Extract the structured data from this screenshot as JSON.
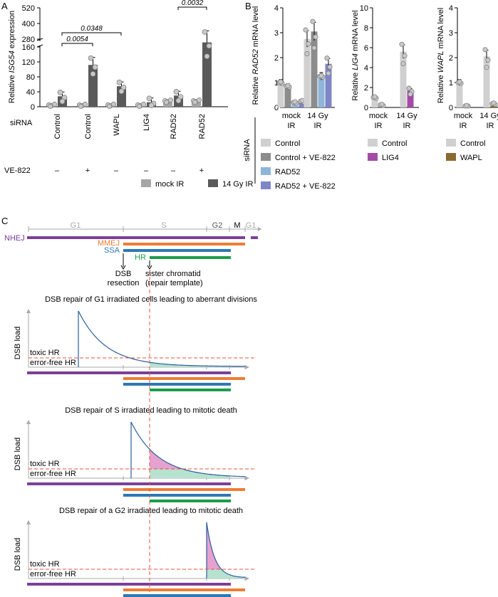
{
  "panel_labels": {
    "a": "A",
    "b": "B",
    "c": "C"
  },
  "colors": {
    "mock": "#a6a6a6",
    "gy14": "#5a5a5a",
    "control": "#d0d0d0",
    "control_ve": "#8c8c8c",
    "rad52": "#8fb5d9",
    "rad52_ve": "#7f86c6",
    "lig4": "#a24ba7",
    "wapl": "#8a6b2f",
    "nhej": "#7c3f98",
    "mmej": "#ee7d36",
    "ssa": "#2c78b5",
    "hr": "#1b9e4b",
    "curve": "#2c5f9e",
    "toxic": "#e6a1d0",
    "errorfree": "#b6e2cf",
    "dashed": "#e8503a"
  },
  "chart_data": [
    {
      "id": "A",
      "type": "bar",
      "ylabel_prefix": "Relative ",
      "ylabel_gene": "ISG54",
      "ylabel_suffix": " expression",
      "lower_ticks": [
        0,
        40,
        80,
        120,
        160
      ],
      "upper_ticks": [
        280,
        400,
        520
      ],
      "axis_break": [
        160,
        220
      ],
      "row_label": "siRNA",
      "treat_label": "VE-822",
      "groups": [
        {
          "label": "Control",
          "ve": "–",
          "mock": 1,
          "gy14": 28
        },
        {
          "label": "Control",
          "ve": "+",
          "mock": 1,
          "gy14": 112
        },
        {
          "label": "WAPL",
          "ve": "–",
          "mock": 1,
          "gy14": 55
        },
        {
          "label": "LIG4",
          "ve": "–",
          "mock": 1,
          "gy14": 12
        },
        {
          "label": "RAD52",
          "ve": "–",
          "mock": 12,
          "gy14": 30
        },
        {
          "label": "RAD52",
          "ve": "+",
          "mock": 12,
          "gy14": 255
        }
      ],
      "significance": [
        {
          "label": "0.0348",
          "from": 0,
          "to": 2
        },
        {
          "label": "0.0054",
          "from": 0,
          "to": 1
        },
        {
          "label": "0.0032",
          "from": 4,
          "to": 5
        }
      ],
      "legend": [
        {
          "key": "mock",
          "label": "mock IR"
        },
        {
          "key": "gy14",
          "label": "14 Gy IR"
        }
      ]
    },
    {
      "id": "B1",
      "type": "bar",
      "ylabel_prefix": "Relative ",
      "ylabel_gene": "RAD52",
      "ylabel_suffix": " mRNA level",
      "ylim": [
        0,
        4
      ],
      "ticks": [
        0,
        1,
        2,
        3,
        4
      ],
      "categories": [
        {
          "top": "mock",
          "bottom": "IR"
        },
        {
          "top": "14 Gy",
          "bottom": "IR"
        }
      ],
      "series": [
        {
          "name": "Control",
          "color_key": "control",
          "values": [
            1.0,
            2.75
          ]
        },
        {
          "name": "Control + VE-822",
          "color_key": "control_ve",
          "values": [
            0.85,
            3.05
          ]
        },
        {
          "name": "RAD52",
          "color_key": "rad52",
          "values": [
            0.2,
            1.25
          ]
        },
        {
          "name": "RAD52 + VE-822",
          "color_key": "rad52_ve",
          "values": [
            0.25,
            1.75
          ]
        }
      ]
    },
    {
      "id": "B2",
      "type": "bar",
      "ylabel_prefix": "Relative ",
      "ylabel_gene": "LIG4",
      "ylabel_suffix": " mRNA level",
      "ylim": [
        0,
        10
      ],
      "ticks": [
        0,
        2,
        4,
        6,
        8,
        10
      ],
      "categories": [
        {
          "top": "mock",
          "bottom": "IR"
        },
        {
          "top": "14 Gy",
          "bottom": "IR"
        }
      ],
      "series": [
        {
          "name": "Control",
          "color_key": "control",
          "values": [
            1.0,
            5.6
          ]
        },
        {
          "name": "LIG4",
          "color_key": "lig4",
          "values": [
            0.25,
            1.7
          ]
        }
      ]
    },
    {
      "id": "B3",
      "type": "bar",
      "ylabel_prefix": "Relative ",
      "ylabel_gene": "WAPL",
      "ylabel_suffix": " mRNA level",
      "ylim": [
        0,
        4
      ],
      "ticks": [
        0,
        1,
        2,
        3,
        4
      ],
      "categories": [
        {
          "top": "mock",
          "bottom": "IR"
        },
        {
          "top": "14 Gy",
          "bottom": "IR"
        }
      ],
      "series": [
        {
          "name": "Control",
          "color_key": "control",
          "values": [
            1.0,
            2.05
          ]
        },
        {
          "name": "WAPL",
          "color_key": "wapl",
          "values": [
            0.05,
            0.15
          ]
        }
      ]
    }
  ],
  "panel_b": {
    "sirna_label": "siRNA"
  },
  "panel_c": {
    "phases": {
      "g1": "G1",
      "s": "S",
      "g2": "G2",
      "m": "M",
      "g1_next": "G1"
    },
    "pathways": {
      "nhej": "NHEJ",
      "mmej": "MMEJ",
      "ssa": "SSA",
      "hr": "HR"
    },
    "dsb_resection": [
      "DSB",
      "resection"
    ],
    "sister_chromatid": [
      "sister chromatid",
      "(repair template)"
    ],
    "ylabel": "DSB load",
    "toxic_label": "toxic HR",
    "errorfree_label": "error-free HR",
    "scenarios": [
      {
        "title": "DSB repair of G1 irradiated cells leading to aberrant divisions"
      },
      {
        "title": "DSB repair of S irradiated leading to mitotic death"
      },
      {
        "title": "DSB repair of a G2 irradiated leading to mitotic death"
      }
    ]
  }
}
